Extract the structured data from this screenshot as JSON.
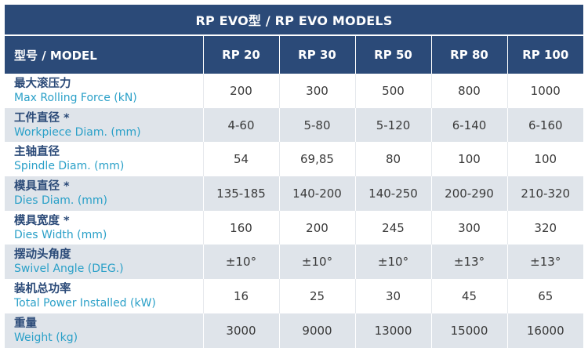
{
  "table": {
    "title": "RP EVO型 / RP EVO MODELS",
    "model_header": "型号 / MODEL",
    "models": [
      "RP 20",
      "RP 30",
      "RP 50",
      "RP 80",
      "RP 100"
    ],
    "rows": [
      {
        "cn": "最大滚压力",
        "en": "Max Rolling Force (kN)",
        "values": [
          "200",
          "300",
          "500",
          "800",
          "1000"
        ]
      },
      {
        "cn": "工件直径 *",
        "en": "Workpiece Diam. (mm)",
        "values": [
          "4-60",
          "5-80",
          "5-120",
          "6-140",
          "6-160"
        ]
      },
      {
        "cn": "主轴直径",
        "en": "Spindle Diam. (mm)",
        "values": [
          "54",
          "69,85",
          "80",
          "100",
          "100"
        ]
      },
      {
        "cn": "模具直径 *",
        "en": "Dies Diam. (mm)",
        "values": [
          "135-185",
          "140-200",
          "140-250",
          "200-290",
          "210-320"
        ]
      },
      {
        "cn": "模具宽度 *",
        "en": "Dies Width (mm)",
        "values": [
          "160",
          "200",
          "245",
          "300",
          "320"
        ]
      },
      {
        "cn": "摆动头角度",
        "en": "Swivel Angle (DEG.)",
        "values": [
          "±10°",
          "±10°",
          "±10°",
          "±13°",
          "±13°"
        ]
      },
      {
        "cn": "装机总功率",
        "en": "Total Power Installed (kW)",
        "values": [
          "16",
          "25",
          "30",
          "45",
          "65"
        ]
      },
      {
        "cn": "重量",
        "en": "Weight (kg)",
        "values": [
          "3000",
          "9000",
          "13000",
          "15000",
          "16000"
        ]
      }
    ]
  },
  "colors": {
    "header_bg": "#2b4a78",
    "label_cn": "#2b4a78",
    "label_en": "#2aa0c8",
    "stripe": "#dfe4ea"
  }
}
